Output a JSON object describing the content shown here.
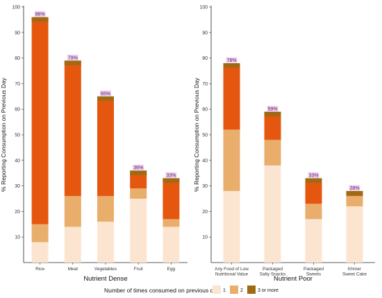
{
  "chart_data": [
    {
      "type": "bar",
      "stacked": true,
      "xlabel": "Nutrient Dense",
      "ylabel": "% Reporting Consumption on Previous Day",
      "ylim": [
        0,
        100
      ],
      "yticks": [
        10,
        20,
        30,
        40,
        50,
        60,
        70,
        80,
        90,
        100
      ],
      "categories": [
        "Rice",
        "Meat",
        "Vegetables",
        "Fruit",
        "Egg"
      ],
      "category_lines": [
        [
          "Rice"
        ],
        [
          "Meat"
        ],
        [
          "Vegetables"
        ],
        [
          "Fruit"
        ],
        [
          "Egg"
        ]
      ],
      "series": [
        {
          "name": "1",
          "values": [
            8,
            14,
            16,
            25,
            14
          ]
        },
        {
          "name": "2",
          "values": [
            7,
            12,
            10,
            4,
            3
          ]
        },
        {
          "name": "3 or more",
          "values": [
            81,
            53,
            39,
            7,
            16
          ]
        }
      ],
      "totals": [
        96,
        79,
        65,
        36,
        33
      ],
      "total_labels": [
        "96%",
        "79%",
        "65%",
        "36%",
        "33%"
      ]
    },
    {
      "type": "bar",
      "stacked": true,
      "xlabel": "Nutrient Poor",
      "ylabel": "% Reporting Consumption on Previous Day",
      "ylim": [
        0,
        100
      ],
      "yticks": [
        10,
        20,
        30,
        40,
        50,
        60,
        70,
        80,
        90,
        100
      ],
      "categories": [
        "Any Food of Low Nutritional Value",
        "Packaged Salty Snacks",
        "Packaged Sweets",
        "Khmer Sweet Cake"
      ],
      "category_lines": [
        [
          "Any Food of Low",
          "Nutritional Value"
        ],
        [
          "Packaged",
          "Salty Snacks"
        ],
        [
          "Packaged",
          "Sweets"
        ],
        [
          "Khmer",
          "Sweet Cake"
        ]
      ],
      "series": [
        {
          "name": "1",
          "values": [
            28,
            38,
            17,
            22
          ]
        },
        {
          "name": "2",
          "values": [
            24,
            10,
            6,
            4
          ]
        },
        {
          "name": "3 or more",
          "values": [
            26,
            11,
            10,
            2
          ]
        }
      ],
      "totals": [
        78,
        59,
        33,
        28
      ],
      "total_labels": [
        "78%",
        "59%",
        "33%",
        "28%"
      ]
    }
  ],
  "legend": {
    "title": "Number of times consumed on previous day",
    "position": "bottom",
    "entries": [
      "1",
      "2",
      "3 or more"
    ]
  },
  "colors": {
    "1": "#fbe5d0",
    "2": "#e9ae6c",
    "3 or more": "#e5570f",
    "cap": "#a06a14",
    "legend_3": "#a06a14",
    "label_highlight": "#f3c6ee"
  }
}
